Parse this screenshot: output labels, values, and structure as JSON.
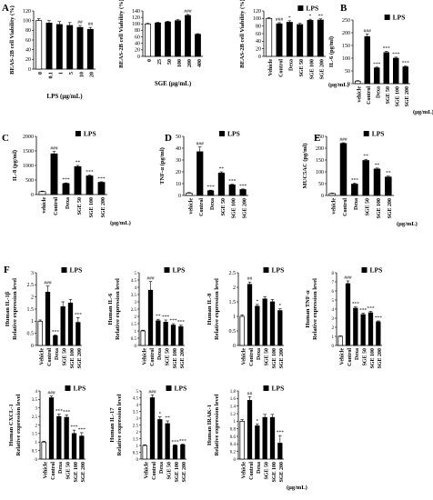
{
  "chart_data": [
    {
      "id": "A1",
      "panel_letter": "A",
      "type": "bar",
      "ylabel": "BEAS-2B cell Viability (%)",
      "ylim": [
        0,
        120
      ],
      "yticks": [
        0,
        20,
        40,
        60,
        80,
        100,
        120
      ],
      "categories": [
        "0",
        "0.1",
        "1",
        "5",
        "10",
        "20"
      ],
      "xlabel": "LPS (μg/mL)",
      "values": [
        100,
        95,
        92,
        90,
        86,
        82
      ],
      "errors": [
        4,
        5,
        6,
        6,
        4,
        4
      ],
      "fills": [
        "#fff",
        "#000",
        "#000",
        "#000",
        "#000",
        "#000"
      ],
      "annotations": [
        "",
        "",
        "",
        "",
        "##",
        "##"
      ],
      "legend": null,
      "unit": ""
    },
    {
      "id": "A2",
      "panel_letter": "",
      "type": "bar",
      "ylabel": "BEAS-2B cell Viability (%)",
      "ylim": [
        0,
        140
      ],
      "yticks": [
        0,
        20,
        40,
        60,
        80,
        100,
        120,
        140
      ],
      "categories": [
        "0",
        "25",
        "50",
        "100",
        "200",
        "400"
      ],
      "xlabel": "SGE (μg/mL)",
      "values": [
        100,
        103,
        106,
        110,
        126,
        68
      ],
      "errors": [
        2,
        2,
        2,
        3,
        3,
        2
      ],
      "fills": [
        "#fff",
        "#000",
        "#000",
        "#000",
        "#000",
        "#000"
      ],
      "annotations": [
        "",
        "",
        "",
        "",
        "###",
        ""
      ],
      "legend": null,
      "unit": ""
    },
    {
      "id": "A3",
      "panel_letter": "",
      "type": "bar",
      "ylabel": "BEAS-2B cell Viability (%)",
      "ylim": [
        0,
        120
      ],
      "yticks": [
        0,
        20,
        40,
        60,
        80,
        100,
        120
      ],
      "categories": [
        "Vehicle",
        "Control",
        "Dexa",
        "SGE 50",
        "SGE 100",
        "SGE 200"
      ],
      "xlabel": "",
      "values": [
        100,
        86,
        90,
        84,
        95,
        96
      ],
      "errors": [
        2,
        3,
        4,
        3,
        3,
        3
      ],
      "fills": [
        "#fff",
        "#000",
        "#000",
        "#000",
        "#000",
        "#000"
      ],
      "annotations": [
        "",
        "###",
        "*",
        "",
        "*",
        "**"
      ],
      "legend": "LPS",
      "unit": "(μg/mL)"
    },
    {
      "id": "B",
      "panel_letter": "B",
      "type": "bar",
      "ylabel": "IL-6 (pg/ml)",
      "ylim": [
        0,
        250
      ],
      "yticks": [
        0,
        50,
        100,
        150,
        200,
        250
      ],
      "categories": [
        "vehicle",
        "Control",
        "Dexa",
        "SGE 50",
        "SGE 100",
        "SGE 200"
      ],
      "xlabel": "",
      "values": [
        10,
        185,
        62,
        122,
        100,
        66
      ],
      "errors": [
        2,
        10,
        3,
        5,
        4,
        3
      ],
      "fills": [
        "#fff",
        "#000",
        "#000",
        "#000",
        "#000",
        "#000"
      ],
      "annotations": [
        "",
        "###",
        "***",
        "***",
        "***",
        "***"
      ],
      "legend": "LPS",
      "unit": "(μg/mL)"
    },
    {
      "id": "C",
      "panel_letter": "C",
      "type": "bar",
      "ylabel": "IL-8 (pg/ml)",
      "ylim": [
        0,
        2000
      ],
      "yticks": [
        0,
        500,
        1000,
        1500,
        2000
      ],
      "categories": [
        "vehicle",
        "Control",
        "Dexa",
        "SGE 50",
        "SGE 100",
        "SGE 200"
      ],
      "xlabel": "",
      "values": [
        100,
        1400,
        380,
        960,
        640,
        420
      ],
      "errors": [
        20,
        80,
        20,
        40,
        30,
        20
      ],
      "fills": [
        "#fff",
        "#000",
        "#000",
        "#000",
        "#000",
        "#000"
      ],
      "annotations": [
        "",
        "###",
        "***",
        "**",
        "***",
        "***"
      ],
      "legend": "LPS",
      "unit": "(μg/mL)"
    },
    {
      "id": "D",
      "panel_letter": "D",
      "type": "bar",
      "ylabel": "TNF-α (pg/ml)",
      "ylim": [
        0,
        50
      ],
      "yticks": [
        0,
        10,
        20,
        30,
        40,
        50
      ],
      "categories": [
        "vehicle",
        "Control",
        "Dexa",
        "SGE 50",
        "SGE 100",
        "SGE 200"
      ],
      "xlabel": "",
      "values": [
        2,
        37,
        4,
        19,
        9,
        5
      ],
      "errors": [
        0.5,
        4,
        0.5,
        1,
        0.5,
        0.5
      ],
      "fills": [
        "#fff",
        "#000",
        "#000",
        "#000",
        "#000",
        "#000"
      ],
      "annotations": [
        "",
        "###",
        "***",
        "**",
        "***",
        "***"
      ],
      "legend": "LPS",
      "unit": ""
    },
    {
      "id": "E",
      "panel_letter": "E",
      "type": "bar",
      "ylabel": "MUC5AC (pg/ml)",
      "ylim": [
        0,
        250
      ],
      "yticks": [
        0,
        50,
        100,
        150,
        200,
        250
      ],
      "categories": [
        "vehicle",
        "Control",
        "Dexa",
        "SGE 50",
        "SGE 100",
        "SGE 200"
      ],
      "xlabel": "",
      "values": [
        8,
        220,
        48,
        148,
        112,
        78
      ],
      "errors": [
        2,
        3,
        4,
        5,
        4,
        4
      ],
      "fills": [
        "#fff",
        "#000",
        "#000",
        "#000",
        "#000",
        "#000"
      ],
      "annotations": [
        "",
        "###",
        "***",
        "**",
        "**",
        "**"
      ],
      "legend": "LPS",
      "unit": "(μg/mL)"
    },
    {
      "id": "F1",
      "panel_letter": "F",
      "type": "bar",
      "ylabel": "Human IL-1β\nRelative expression level",
      "ylim": [
        0,
        3
      ],
      "yticks": [
        0,
        0.5,
        1,
        1.5,
        2,
        2.5,
        3
      ],
      "categories": [
        "Vehicle",
        "Control",
        "Dexa",
        "SGE 50",
        "SGE 100",
        "SGE 200"
      ],
      "xlabel": "",
      "values": [
        1,
        2.2,
        0.4,
        1.6,
        1.75,
        0.95
      ],
      "errors": [
        0.05,
        0.25,
        0.03,
        0.2,
        0.15,
        0.2
      ],
      "fills": [
        "#fff",
        "#000",
        "#000",
        "#000",
        "#000",
        "#000"
      ],
      "annotations": [
        "",
        "###",
        "***",
        "",
        "",
        "***"
      ],
      "legend": "LPS",
      "unit": ""
    },
    {
      "id": "F2",
      "panel_letter": "",
      "type": "bar",
      "ylabel": "Human IL-6\nRelative expression level",
      "ylim": [
        0,
        5
      ],
      "yticks": [
        0,
        0.5,
        1,
        1.5,
        2,
        2.5,
        3,
        3.5,
        4,
        4.5,
        5
      ],
      "categories": [
        "Vehicle",
        "Control",
        "Dexa",
        "SGE 50",
        "SGE 100",
        "SGE 200"
      ],
      "xlabel": "",
      "values": [
        1,
        3.8,
        1.7,
        1.6,
        1.4,
        1.3
      ],
      "errors": [
        0.05,
        0.6,
        0.1,
        0.15,
        0.1,
        0.1
      ],
      "fills": [
        "#fff",
        "#000",
        "#000",
        "#000",
        "#000",
        "#000"
      ],
      "annotations": [
        "",
        "###",
        "**",
        "***",
        "***",
        "***"
      ],
      "legend": "LPS",
      "unit": ""
    },
    {
      "id": "F3",
      "panel_letter": "",
      "type": "bar",
      "ylabel": "Human IL-8\nRelative expression level",
      "ylim": [
        0,
        2.5
      ],
      "yticks": [
        0,
        0.5,
        1,
        1.5,
        2,
        2.5
      ],
      "categories": [
        "Vehicle",
        "Control",
        "Dexa",
        "SGE 50",
        "SGE 100",
        "SGE 200"
      ],
      "xlabel": "",
      "values": [
        1,
        2.1,
        1.35,
        1.6,
        1.5,
        1.2
      ],
      "errors": [
        0.05,
        0.08,
        0.06,
        0.08,
        0.08,
        0.06
      ],
      "fills": [
        "#fff",
        "#000",
        "#000",
        "#000",
        "#000",
        "#000"
      ],
      "annotations": [
        "",
        "##",
        "*",
        "",
        "",
        "*"
      ],
      "legend": "LPS",
      "unit": ""
    },
    {
      "id": "F4",
      "panel_letter": "",
      "type": "bar",
      "ylabel": "Human TNF-α\nRelative expression level",
      "ylim": [
        0,
        8
      ],
      "yticks": [
        0,
        1,
        2,
        3,
        4,
        5,
        6,
        7,
        8
      ],
      "categories": [
        "Vehicle",
        "Control",
        "Dexa",
        "SGE 50",
        "SGE 100",
        "SGE 200"
      ],
      "xlabel": "",
      "values": [
        1,
        6.8,
        4.1,
        3.4,
        3.6,
        2.6
      ],
      "errors": [
        0.05,
        0.3,
        0.15,
        0.15,
        0.15,
        0.1
      ],
      "fills": [
        "#fff",
        "#000",
        "#000",
        "#000",
        "#000",
        "#000"
      ],
      "annotations": [
        "",
        "###",
        "***",
        "***",
        "***",
        "***"
      ],
      "legend": "LPS",
      "unit": ""
    },
    {
      "id": "F5",
      "panel_letter": "",
      "type": "bar",
      "ylabel": "Human CXCL-1\nRelative expression level",
      "ylim": [
        0,
        4
      ],
      "yticks": [
        0,
        0.5,
        1,
        1.5,
        2,
        2.5,
        3,
        3.5,
        4
      ],
      "categories": [
        "Vehicle",
        "Control",
        "Dexa",
        "SGE 50",
        "SGE 100",
        "SGE 200"
      ],
      "xlabel": "",
      "values": [
        1,
        3.6,
        2.5,
        2.45,
        1.5,
        1.35
      ],
      "errors": [
        0.05,
        0.1,
        0.15,
        0.15,
        0.2,
        0.2
      ],
      "fills": [
        "#fff",
        "#000",
        "#000",
        "#000",
        "#000",
        "#000"
      ],
      "annotations": [
        "",
        "###",
        "***",
        "***",
        "***",
        "***"
      ],
      "legend": "LPS",
      "unit": ""
    },
    {
      "id": "F6",
      "panel_letter": "",
      "type": "bar",
      "ylabel": "Human IL-17\nRelative expression level",
      "ylim": [
        0,
        5
      ],
      "yticks": [
        0,
        0.5,
        1,
        1.5,
        2,
        2.5,
        3,
        3.5,
        4,
        4.5,
        5
      ],
      "categories": [
        "Vehicle",
        "Control",
        "Dexa",
        "SGE 50",
        "SGE 100",
        "SGE 200"
      ],
      "xlabel": "",
      "values": [
        1,
        4.5,
        2.9,
        2.6,
        1.0,
        1.05
      ],
      "errors": [
        0.05,
        0.2,
        0.2,
        0.2,
        0.05,
        0.05
      ],
      "fills": [
        "#fff",
        "#000",
        "#000",
        "#000",
        "#000",
        "#000"
      ],
      "annotations": [
        "",
        "###",
        "*",
        "**",
        "***",
        "***"
      ],
      "legend": "LPS",
      "unit": ""
    },
    {
      "id": "F7",
      "panel_letter": "",
      "type": "bar",
      "ylabel": "Human IRAK-1\nRelative expression level",
      "ylim": [
        0,
        1.8
      ],
      "yticks": [
        0,
        0.2,
        0.4,
        0.6,
        0.8,
        1,
        1.2,
        1.4,
        1.6,
        1.8
      ],
      "categories": [
        "Vehicle",
        "Control",
        "Dexa",
        "SGE 50",
        "SGE 100",
        "SGE 200"
      ],
      "xlabel": "",
      "values": [
        1,
        1.55,
        0.88,
        1.1,
        1.1,
        0.42
      ],
      "errors": [
        0.05,
        0.1,
        0.05,
        0.08,
        0.08,
        0.2
      ],
      "fills": [
        "#fff",
        "#000",
        "#000",
        "#000",
        "#000",
        "#000"
      ],
      "annotations": [
        "",
        "##",
        "*",
        "",
        "",
        "***"
      ],
      "legend": "LPS",
      "unit": "(μg/mL)"
    }
  ]
}
